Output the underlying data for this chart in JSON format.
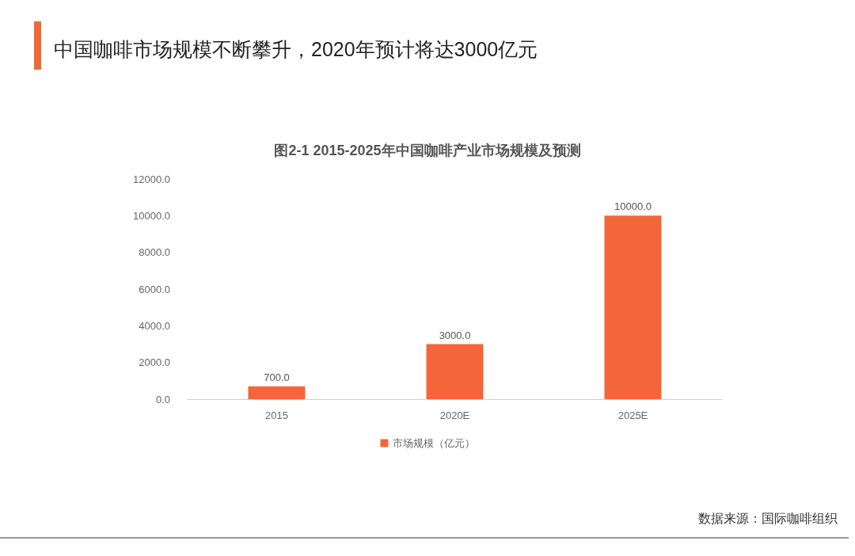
{
  "chart_data": {
    "type": "bar",
    "title": "中国咖啡市场规模不断攀升，2020年预计将达3000亿元",
    "subtitle": "图2-1 2015-2025年中国咖啡产业市场规模及预测",
    "categories": [
      "2015",
      "2020E",
      "2025E"
    ],
    "series": [
      {
        "name": "市场规模（亿元）",
        "color": "#f4663a",
        "values": [
          700,
          3000,
          10000
        ],
        "value_labels": [
          "700.0",
          "3000.0",
          "10000.0"
        ]
      }
    ],
    "ylim": [
      0,
      12000
    ],
    "yticks": [
      {
        "value": 0,
        "label": "0.0"
      },
      {
        "value": 2000,
        "label": "2000.0"
      },
      {
        "value": 4000,
        "label": "4000.0"
      },
      {
        "value": 6000,
        "label": "6000.0"
      },
      {
        "value": 8000,
        "label": "8000.0"
      },
      {
        "value": 10000,
        "label": "10000.0"
      },
      {
        "value": 12000,
        "label": "12000.0"
      }
    ],
    "legend": "bottom",
    "annotations": [
      "数据来源：国际咖啡组织"
    ]
  }
}
